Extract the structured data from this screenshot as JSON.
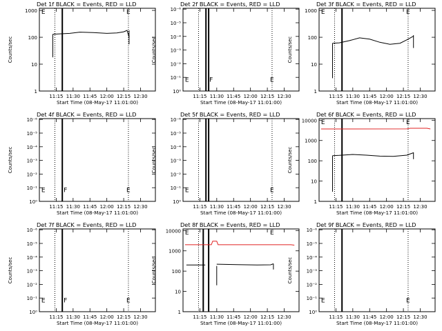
{
  "chart_data": [
    {
      "type": "line",
      "title": "Det 1f BLACK = Events, RED = LLD",
      "xlabel": "Start Time (08-May-17 11:01:00)",
      "ylabel": "Counts/sec",
      "yscale": "log",
      "ylim": [
        1,
        1200
      ],
      "yticks": [
        "1",
        "10",
        "100",
        "1000"
      ],
      "xrange_minutes": [
        11.0,
        12.72
      ],
      "xticks": [
        "11:15",
        "11:30",
        "11:45",
        "12:00",
        "12:15",
        "12:30"
      ],
      "markers": {
        "dotted": [
          11.23,
          12.32
        ],
        "solid": [
          11.34
        ]
      },
      "series": [
        {
          "color": "#000000",
          "segments": [
            {
              "x": [
                11.2,
                11.2
              ],
              "y": [
                18,
                130
              ]
            },
            {
              "x": [
                11.2,
                11.45,
                11.6,
                11.8,
                12.0,
                12.15,
                12.25,
                12.3,
                12.33
              ],
              "y": [
                130,
                140,
                155,
                150,
                140,
                145,
                160,
                180,
                100
              ]
            },
            {
              "x": [
                12.33,
                12.33
              ],
              "y": [
                180,
                55
              ]
            }
          ]
        }
      ],
      "labels": [
        {
          "text": "E",
          "x": 11.03,
          "y": 1200
        },
        {
          "text": "E",
          "x": 12.29,
          "y": 1200
        }
      ]
    },
    {
      "type": "line",
      "title": "Det 2f BLACK = Events, RED = LLD",
      "xlabel": "Start Time (08-May-17 11:01:00)",
      "ylabel": "Counts/sec",
      "yscale": "log",
      "ylim": [
        0.9,
        100000000.0
      ],
      "yticks": [
        "10⁰",
        "10⁻¹",
        "10⁻²",
        "10⁻³",
        "10⁻⁴",
        "10⁻⁵",
        "10⁻⁶"
      ],
      "xrange_minutes": [
        11.0,
        12.72
      ],
      "xticks": [
        "11:15",
        "11:30",
        "11:45",
        "12:00",
        "12:15",
        "12:30"
      ],
      "markers": {
        "dotted": [
          11.23,
          12.32
        ],
        "solid": [
          11.34,
          11.38
        ]
      },
      "series": [],
      "labels": [
        {
          "text": "E",
          "x": 11.03,
          "y": 7
        },
        {
          "text": "F",
          "x": 11.39,
          "y": 7
        },
        {
          "text": "E",
          "x": 12.29,
          "y": 7
        }
      ]
    },
    {
      "type": "line",
      "title": "Det 3f BLACK = Events, RED = LLD",
      "xlabel": "Start Time (08-May-17 11:01:00)",
      "ylabel": "Counts/sec",
      "yscale": "log",
      "ylim": [
        1,
        1200
      ],
      "yticks": [
        "1",
        "10",
        "100",
        "1000"
      ],
      "xrange_minutes": [
        11.0,
        12.72
      ],
      "xticks": [
        "11:15",
        "11:30",
        "11:45",
        "12:00",
        "12:15",
        "12:30"
      ],
      "markers": {
        "dotted": [
          11.23,
          12.32
        ],
        "solid": [
          11.34
        ]
      },
      "series": [
        {
          "color": "#000000",
          "segments": [
            {
              "x": [
                11.2,
                11.2
              ],
              "y": [
                3,
                60
              ]
            },
            {
              "x": [
                11.2,
                11.3,
                11.45,
                11.6,
                11.75,
                11.9,
                12.05,
                12.2,
                12.3,
                12.4
              ],
              "y": [
                60,
                62,
                75,
                95,
                85,
                65,
                55,
                60,
                80,
                110
              ]
            },
            {
              "x": [
                12.4,
                12.4
              ],
              "y": [
                120,
                40
              ]
            }
          ]
        }
      ],
      "labels": [
        {
          "text": "E",
          "x": 11.03,
          "y": 1200
        },
        {
          "text": "E",
          "x": 12.29,
          "y": 1200
        }
      ]
    },
    {
      "type": "line",
      "title": "Det 4f BLACK = Events, RED = LLD",
      "xlabel": "Start Time (08-May-17 11:01:00)",
      "ylabel": "Counts/sec",
      "yscale": "log",
      "ylim": [
        0.9,
        100000000.0
      ],
      "yticks": [
        "10⁰",
        "10⁻¹",
        "10⁻²",
        "10⁻³",
        "10⁻⁴",
        "10⁻⁵",
        "10⁻⁶"
      ],
      "xrange_minutes": [
        11.0,
        12.72
      ],
      "xticks": [
        "11:15",
        "11:30",
        "11:45",
        "12:00",
        "12:15",
        "12:30"
      ],
      "markers": {
        "dotted": [
          11.23,
          12.32
        ],
        "solid": [
          11.34
        ]
      },
      "series": [],
      "labels": [
        {
          "text": "E",
          "x": 11.03,
          "y": 7
        },
        {
          "text": "F",
          "x": 11.36,
          "y": 7
        },
        {
          "text": "E",
          "x": 12.29,
          "y": 7
        }
      ]
    },
    {
      "type": "line",
      "title": "Det 5f BLACK = Events, RED = LLD",
      "xlabel": "Start Time (08-May-17 11:01:00)",
      "ylabel": "Counts/sec",
      "yscale": "log",
      "ylim": [
        0.9,
        100000000.0
      ],
      "yticks": [
        "10⁰",
        "10⁻¹",
        "10⁻²",
        "10⁻³",
        "10⁻⁴",
        "10⁻⁵",
        "10⁻⁶"
      ],
      "xrange_minutes": [
        11.0,
        12.72
      ],
      "xticks": [
        "11:15",
        "11:30",
        "11:45",
        "12:00",
        "12:15",
        "12:30"
      ],
      "markers": {
        "dotted": [
          11.23,
          12.32
        ],
        "solid": [
          11.34,
          11.38
        ]
      },
      "series": [],
      "labels": [
        {
          "text": "E",
          "x": 11.03,
          "y": 7
        },
        {
          "text": "E",
          "x": 12.29,
          "y": 7
        }
      ]
    },
    {
      "type": "line",
      "title": "Det 6f BLACK = Events, RED = LLD",
      "xlabel": "Start Time (08-May-17 11:01:00)",
      "ylabel": "Counts/sec",
      "yscale": "log",
      "ylim": [
        1,
        12000
      ],
      "yticks": [
        "1",
        "10",
        "100",
        "1000",
        "10000"
      ],
      "xrange_minutes": [
        11.0,
        12.72
      ],
      "xticks": [
        "11:15",
        "11:30",
        "11:45",
        "12:00",
        "12:15",
        "12:30"
      ],
      "markers": {
        "dotted": [
          11.23,
          12.32
        ],
        "solid": [
          11.34
        ]
      },
      "series": [
        {
          "color": "#e02020",
          "segments": [
            {
              "x": [
                11.03,
                12.3,
                12.35,
                12.6,
                12.65
              ],
              "y": [
                3700,
                3750,
                4000,
                4000,
                3700
              ]
            }
          ]
        },
        {
          "color": "#000000",
          "segments": [
            {
              "x": [
                11.2,
                11.2
              ],
              "y": [
                3,
                180
              ]
            },
            {
              "x": [
                11.2,
                11.3,
                11.5,
                11.7,
                11.9,
                12.1,
                12.3,
                12.4
              ],
              "y": [
                180,
                185,
                205,
                190,
                170,
                165,
                190,
                250
              ]
            },
            {
              "x": [
                12.4,
                12.4
              ],
              "y": [
                260,
                120
              ]
            }
          ]
        }
      ],
      "labels": [
        {
          "text": "E",
          "x": 11.03,
          "y": 12000
        },
        {
          "text": "E",
          "x": 12.29,
          "y": 12000
        }
      ]
    },
    {
      "type": "line",
      "title": "Det 7f BLACK = Events, RED = LLD",
      "xlabel": "Start Time (08-May-17 11:01:00)",
      "ylabel": "Counts/sec",
      "yscale": "log",
      "ylim": [
        0.9,
        100000000.0
      ],
      "yticks": [
        "10⁰",
        "10⁻¹",
        "10⁻²",
        "10⁻³",
        "10⁻⁴",
        "10⁻⁵",
        "10⁻⁶"
      ],
      "xrange_minutes": [
        11.0,
        12.72
      ],
      "xticks": [
        "11:15",
        "11:30",
        "11:45",
        "12:00",
        "12:15",
        "12:30"
      ],
      "markers": {
        "dotted": [
          11.23,
          12.32
        ],
        "solid": [
          11.34
        ]
      },
      "series": [],
      "labels": [
        {
          "text": "E",
          "x": 11.03,
          "y": 7
        },
        {
          "text": "F",
          "x": 11.36,
          "y": 7
        },
        {
          "text": "E",
          "x": 12.29,
          "y": 7
        }
      ]
    },
    {
      "type": "line",
      "title": "Det 8f BLACK = Events, RED = LLD",
      "xlabel": "Start Time (08-May-17 11:01:00)",
      "ylabel": "Counts/sec",
      "yscale": "log",
      "ylim": [
        1,
        12000
      ],
      "yticks": [
        "1",
        "10",
        "100",
        "1000",
        "10000"
      ],
      "xrange_minutes": [
        11.0,
        12.72
      ],
      "xticks": [
        "11:15",
        "11:30",
        "11:45",
        "12:00",
        "12:15",
        "12:30"
      ],
      "markers": {
        "dotted": [
          11.23
        ],
        "solid": [
          11.3,
          11.38
        ]
      },
      "series": [
        {
          "color": "#e02020",
          "segments": [
            {
              "x": [
                11.03,
                11.42,
                11.44,
                11.5,
                11.52,
                12.6,
                12.65
              ],
              "y": [
                2000,
                2000,
                3000,
                3000,
                2000,
                2000,
                1900
              ]
            }
          ]
        },
        {
          "color": "#000000",
          "segments": [
            {
              "x": [
                11.05,
                11.33
              ],
              "y": [
                200,
                200
              ]
            },
            {
              "x": [
                11.5,
                11.5
              ],
              "y": [
                20,
                180
              ]
            },
            {
              "x": [
                11.5,
                11.8,
                12.1,
                12.3,
                12.34
              ],
              "y": [
                220,
                210,
                200,
                205,
                230
              ]
            },
            {
              "x": [
                12.34,
                12.34
              ],
              "y": [
                230,
                120
              ]
            }
          ]
        }
      ],
      "labels": [
        {
          "text": "E",
          "x": 11.03,
          "y": 12000
        },
        {
          "text": "E",
          "x": 12.29,
          "y": 12000
        }
      ]
    },
    {
      "type": "line",
      "title": "Det 9f BLACK = Events, RED = LLD",
      "xlabel": "Start Time (08-May-17 11:01:00)",
      "ylabel": "Counts/sec",
      "yscale": "log",
      "ylim": [
        0.9,
        100000000.0
      ],
      "yticks": [
        "10⁰",
        "10⁻¹",
        "10⁻²",
        "10⁻³",
        "10⁻⁴",
        "10⁻⁵",
        "10⁻⁶"
      ],
      "xrange_minutes": [
        11.0,
        12.72
      ],
      "xticks": [
        "11:15",
        "11:30",
        "11:45",
        "12:00",
        "12:15",
        "12:30"
      ],
      "markers": {
        "dotted": [
          11.23,
          12.32
        ],
        "solid": [
          11.34
        ]
      },
      "series": [],
      "labels": [
        {
          "text": "E",
          "x": 11.03,
          "y": 7
        },
        {
          "text": "E",
          "x": 12.29,
          "y": 7
        }
      ]
    }
  ]
}
